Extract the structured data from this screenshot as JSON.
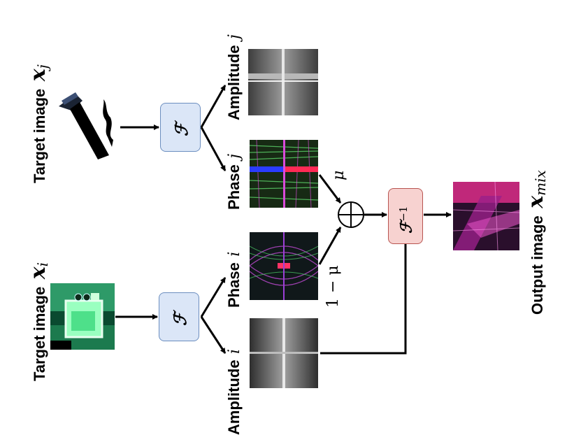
{
  "labels": {
    "target_i": "Target image",
    "target_i_sym": "x",
    "target_i_sub": "i",
    "target_j": "Target image",
    "target_j_sym": "x",
    "target_j_sub": "j",
    "output": "Output image",
    "output_sym": "x",
    "output_sub": "mix",
    "amplitude_i": "Amplitude",
    "amplitude_i_var": "i",
    "phase_i": "Phase",
    "phase_i_var": "i",
    "amplitude_j": "Amplitude",
    "amplitude_j_var": "j",
    "phase_j": "Phase",
    "phase_j_var": "j",
    "fourier": "ℱ",
    "inverse_fourier": "ℱ",
    "inverse_exp": "−1",
    "mu": "μ",
    "one_minus_mu": "1 − μ",
    "oplus": "⊕"
  },
  "colors": {
    "fourier_fill": "#dbe6f7",
    "fourier_stroke": "#6c8ebf",
    "inverse_fill": "#f7d2d0",
    "inverse_stroke": "#b85450"
  }
}
